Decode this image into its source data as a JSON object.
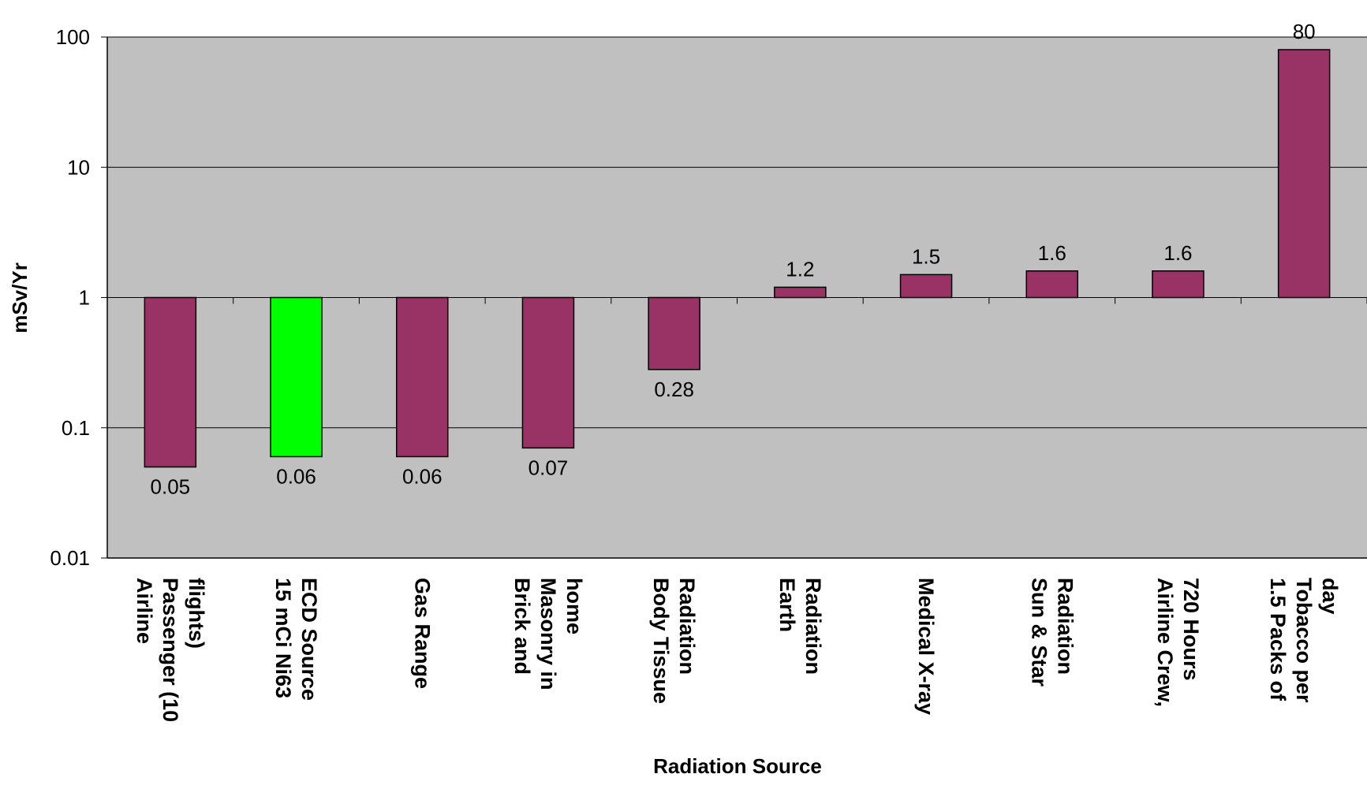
{
  "chart_data": {
    "type": "bar",
    "xlabel": "Radiation Source",
    "ylabel": "mSv/Yr",
    "yscale": "log",
    "ylim": [
      0.01,
      100
    ],
    "baseline": 1,
    "grid": true,
    "legend": "none",
    "y_ticks": [
      "0.01",
      "0.1",
      "1",
      "10",
      "100"
    ],
    "y_tick_values": [
      0.01,
      0.1,
      1,
      10,
      100
    ],
    "categories": [
      [
        "Airline",
        "Passenger (10",
        "flights)"
      ],
      [
        "15 mCi Ni63",
        "ECD Source"
      ],
      [
        "Gas Range"
      ],
      [
        "Brick and",
        "Masonry in",
        "home"
      ],
      [
        "Body Tissue",
        "Radiation"
      ],
      [
        "Earth",
        "Radiation"
      ],
      [
        "Medical X-ray"
      ],
      [
        "Sun & Star",
        "Radiation"
      ],
      [
        "Airline Crew,",
        "720 Hours"
      ],
      [
        "1.5 Packs of",
        "Tobacco per",
        "day"
      ]
    ],
    "values": [
      0.05,
      0.06,
      0.06,
      0.07,
      0.28,
      1.2,
      1.5,
      1.6,
      1.6,
      80
    ],
    "data_labels": [
      "0.05",
      "0.06",
      "0.06",
      "0.07",
      "0.28",
      "1.2",
      "1.5",
      "1.6",
      "1.6",
      "80"
    ],
    "colors": [
      "#993366",
      "#00ff00",
      "#993366",
      "#993366",
      "#993366",
      "#993366",
      "#993366",
      "#993366",
      "#993366",
      "#993366"
    ],
    "plot_background": "#c0c0c0",
    "bar_stroke": "#000000"
  }
}
